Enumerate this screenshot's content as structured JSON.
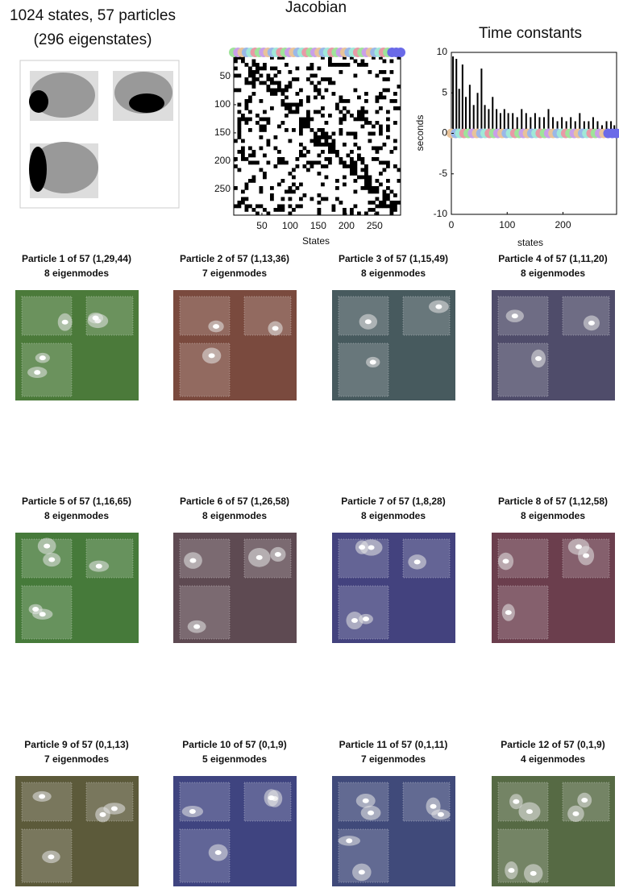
{
  "header": {
    "title": "1024 states, 57 particles",
    "subtitle": "(296 eigenstates)"
  },
  "jacobian": {
    "title": "Jacobian",
    "xlabel": "States",
    "xlim": [
      0,
      296
    ],
    "ylim": [
      0,
      296
    ],
    "xticks": [
      50,
      100,
      150,
      200,
      250
    ],
    "yticks": [
      50,
      100,
      150,
      200,
      250
    ]
  },
  "time_constants": {
    "title": "Time constants",
    "xlabel": "states",
    "ylabel": "seconds",
    "xlim": [
      0,
      296
    ],
    "ylim": [
      -10,
      10
    ],
    "xticks": [
      0,
      100,
      200
    ],
    "yticks": [
      -10,
      -5,
      0,
      5,
      10
    ],
    "x": [
      3,
      9,
      14,
      20,
      26,
      33,
      40,
      47,
      54,
      60,
      67,
      74,
      81,
      88,
      95,
      102,
      110,
      118,
      126,
      134,
      142,
      150,
      158,
      166,
      174,
      182,
      190,
      198,
      206,
      214,
      222,
      230,
      238,
      246,
      254,
      262,
      270,
      278,
      286,
      292
    ],
    "values": [
      9.5,
      9.2,
      5.5,
      8.5,
      4.5,
      6,
      3.5,
      5,
      8,
      3.5,
      3,
      4.5,
      3,
      2.5,
      3,
      2.5,
      2.5,
      2,
      3,
      2.5,
      2,
      2.5,
      2,
      2,
      3,
      2,
      1.5,
      2,
      1.5,
      2,
      1.5,
      2.5,
      1.5,
      1.5,
      2,
      1.5,
      1,
      1.5,
      1.5,
      1
    ]
  },
  "particles": [
    {
      "title": "Particle 1 of 57 (1,29,44)",
      "subtitle": "8 eigenmodes",
      "color": "#4b7a3a"
    },
    {
      "title": "Particle 2 of 57 (1,13,36)",
      "subtitle": "7 eigenmodes",
      "color": "#7a4a3e"
    },
    {
      "title": "Particle 3 of 57 (1,15,49)",
      "subtitle": "8 eigenmodes",
      "color": "#475a5e"
    },
    {
      "title": "Particle 4 of 57 (1,11,20)",
      "subtitle": "8 eigenmodes",
      "color": "#4f4c6a"
    },
    {
      "title": "Particle 5 of 57 (1,16,65)",
      "subtitle": "8 eigenmodes",
      "color": "#467a3a"
    },
    {
      "title": "Particle 6 of 57 (1,26,58)",
      "subtitle": "8 eigenmodes",
      "color": "#5e4a52"
    },
    {
      "title": "Particle 7 of 57 (1,8,28)",
      "subtitle": "8 eigenmodes",
      "color": "#43427e"
    },
    {
      "title": "Particle 8 of 57 (1,12,58)",
      "subtitle": "8 eigenmodes",
      "color": "#6b3e4d"
    },
    {
      "title": "Particle 9 of 57 (0,1,13)",
      "subtitle": "7 eigenmodes",
      "color": "#5c5a3a"
    },
    {
      "title": "Particle 10 of 57 (0,1,9)",
      "subtitle": "5 eigenmodes",
      "color": "#3f4480"
    },
    {
      "title": "Particle 11 of 57 (0,1,11)",
      "subtitle": "7 eigenmodes",
      "color": "#404a7a"
    },
    {
      "title": "Particle 12 of 57 (0,1,9)",
      "subtitle": "4 eigenmodes",
      "color": "#566a44"
    }
  ]
}
